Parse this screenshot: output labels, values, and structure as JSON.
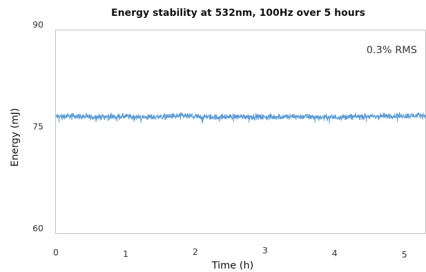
{
  "chart_data": {
    "type": "line",
    "title": "Energy stability at 532nm, 100Hz over 5 hours",
    "xlabel": "Time (h)",
    "ylabel": "Energy (mJ)",
    "xlim": [
      0,
      5.3
    ],
    "ylim": [
      60,
      90
    ],
    "x_ticks": [
      "0",
      "1",
      "2",
      "3",
      "4",
      "5"
    ],
    "y_ticks": [
      "90",
      "75",
      "60"
    ],
    "annotation": "0.3% RMS",
    "grid": false,
    "legend": "none",
    "series_color": "#5b9bd5",
    "series": [
      {
        "x_start": 0,
        "x_end": 5.3,
        "mean": 77.2,
        "rms_percent": 0.3,
        "values": [
          77.2,
          77.3,
          77.1,
          77.2,
          77.2,
          77.1,
          77.2,
          77.3,
          77.2,
          77.1,
          77.2,
          77.2,
          77.1,
          77.2,
          77.2,
          77.1,
          77.1,
          77.2,
          77.2,
          77.3,
          77.3,
          77.4
        ]
      }
    ]
  }
}
